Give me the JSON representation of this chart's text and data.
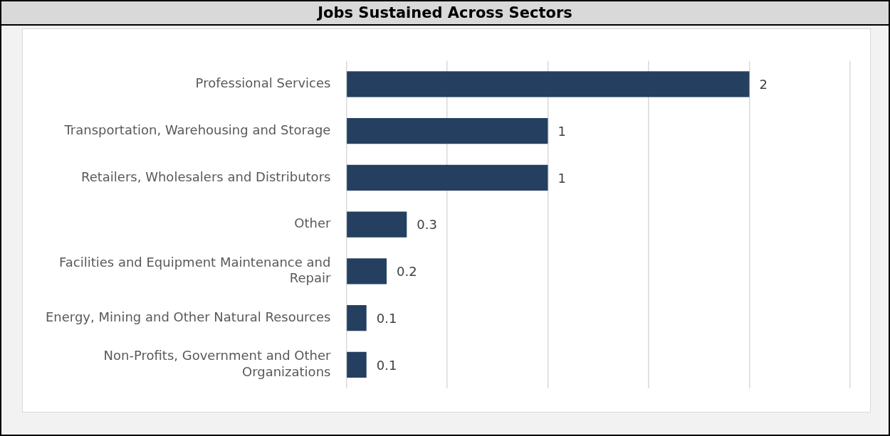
{
  "chart_data": {
    "type": "bar",
    "orientation": "horizontal",
    "title": "Jobs Sustained Across Sectors",
    "categories": [
      "Professional Services",
      "Transportation, Warehousing and Storage",
      "Retailers, Wholesalers and Distributors",
      "Other",
      "Facilities and Equipment Maintenance and Repair",
      "Energy, Mining and Other Natural Resources",
      "Non-Profits, Government and Other Organizations"
    ],
    "values": [
      2,
      1,
      1,
      0.3,
      0.2,
      0.1,
      0.1
    ],
    "color": "#243f60",
    "xlim": [
      0,
      2.5
    ],
    "xticks": [
      {
        "value": 0,
        "label": null
      },
      {
        "value": 0.5,
        "label": null
      },
      {
        "value": 1,
        "label": null
      },
      {
        "value": 1.5,
        "label": null
      },
      {
        "value": 2,
        "label": null
      },
      {
        "value": 2.5,
        "label": null
      }
    ],
    "tick_labels": "y",
    "grid": "x",
    "data_labels": true
  }
}
